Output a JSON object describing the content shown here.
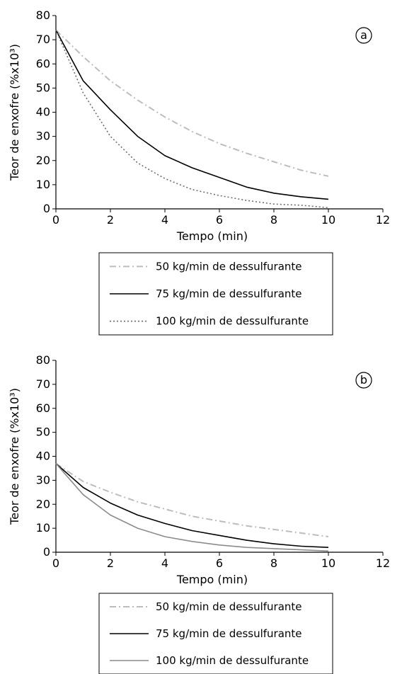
{
  "chart_data": [
    {
      "type": "line",
      "panel_label": "a",
      "xlabel": "Tempo (min)",
      "ylabel": "Teor de enxofre (%x10³)",
      "xlim": [
        0,
        12
      ],
      "ylim": [
        0,
        80
      ],
      "xticks": [
        0,
        2,
        4,
        6,
        8,
        10,
        12
      ],
      "yticks": [
        0,
        10,
        20,
        30,
        40,
        50,
        60,
        70,
        80
      ],
      "grid": false,
      "legend_position": "below",
      "series": [
        {
          "name": "50 kg/min de dessulfurante",
          "color": "#bdbdbd",
          "dash": "dashdot",
          "x": [
            0,
            1,
            2,
            3,
            4,
            5,
            6,
            7,
            8,
            9,
            10
          ],
          "y": [
            74,
            63,
            53,
            45,
            38,
            32,
            27,
            23,
            19.5,
            16,
            13.5
          ]
        },
        {
          "name": "75 kg/min de dessulfurante",
          "color": "#000000",
          "dash": "solid",
          "x": [
            0,
            1,
            2,
            3,
            4,
            5,
            6,
            7,
            8,
            9,
            10
          ],
          "y": [
            74,
            53,
            41,
            30,
            22,
            17,
            13,
            9,
            6.5,
            5,
            4
          ]
        },
        {
          "name": "100 kg/min de dessulfurante",
          "color": "#6e6e6e",
          "dash": "dotted",
          "x": [
            0,
            1,
            2,
            3,
            4,
            5,
            6,
            7,
            8,
            9,
            10
          ],
          "y": [
            74,
            48,
            30,
            19,
            12.5,
            8,
            5.5,
            3.5,
            2,
            1.5,
            0.5
          ]
        }
      ]
    },
    {
      "type": "line",
      "panel_label": "b",
      "xlabel": "Tempo (min)",
      "ylabel": "Teor de enxofre (%x10³)",
      "xlim": [
        0,
        12
      ],
      "ylim": [
        0,
        80
      ],
      "xticks": [
        0,
        2,
        4,
        6,
        8,
        10,
        12
      ],
      "yticks": [
        0,
        10,
        20,
        30,
        40,
        50,
        60,
        70,
        80
      ],
      "grid": false,
      "legend_position": "below",
      "series": [
        {
          "name": "50 kg/min de dessulfurante",
          "color": "#bdbdbd",
          "dash": "dashdot",
          "x": [
            0,
            1,
            2,
            3,
            4,
            5,
            6,
            7,
            8,
            9,
            10
          ],
          "y": [
            37,
            29.5,
            25,
            21,
            18,
            15,
            13,
            11,
            9.5,
            8,
            6.5
          ]
        },
        {
          "name": "75 kg/min de dessulfurante",
          "color": "#000000",
          "dash": "solid",
          "x": [
            0,
            1,
            2,
            3,
            4,
            5,
            6,
            7,
            8,
            9,
            10
          ],
          "y": [
            37,
            27,
            20.5,
            15.5,
            12,
            9,
            7,
            5,
            3.5,
            2.5,
            2
          ]
        },
        {
          "name": "100 kg/min de dessulfurante",
          "color": "#8c8c8c",
          "dash": "solid",
          "x": [
            0,
            1,
            2,
            3,
            4,
            5,
            6,
            7,
            8,
            9,
            10
          ],
          "y": [
            37,
            24,
            15.5,
            10,
            6.5,
            4.5,
            3,
            2,
            1.5,
            1,
            0.5
          ]
        }
      ]
    }
  ]
}
